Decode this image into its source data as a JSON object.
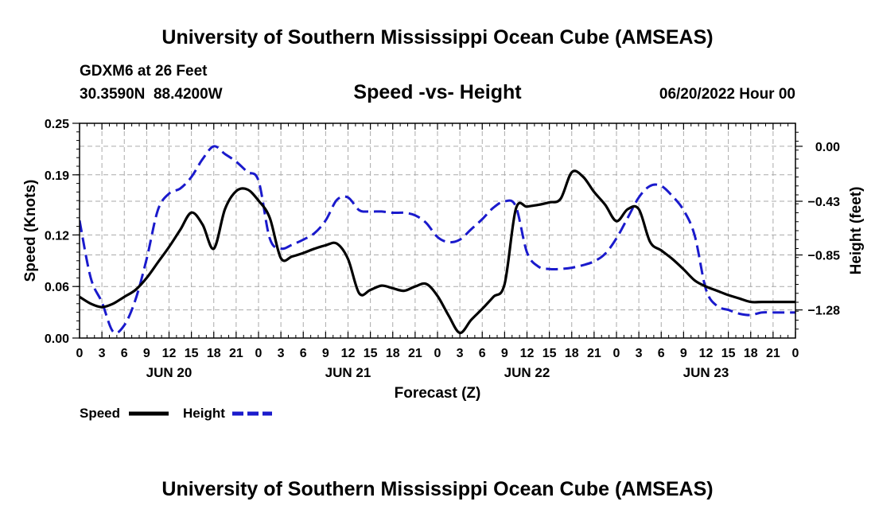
{
  "header": {
    "title": "University of Southern Mississippi Ocean Cube (AMSEAS)",
    "station": "GDXM6 at 26 Feet",
    "coords": "30.3590N  88.4200W",
    "subtitle": "Speed -vs- Height",
    "date": "06/20/2022 Hour 00"
  },
  "footer": {
    "title": "University of Southern Mississippi Ocean Cube (AMSEAS)"
  },
  "colors": {
    "speed": "#000000",
    "height": "#1a1acc",
    "grid": "#aaaaaa"
  },
  "chart_data": {
    "type": "line",
    "title": "Speed -vs- Height",
    "xlabel": "Forecast (Z)",
    "ylabel": "Speed (Knots)",
    "y2label": "Height (feet)",
    "x_range_hours": [
      0,
      96
    ],
    "ylim": [
      0,
      0.25
    ],
    "y_ticks": [
      0.0,
      0.06,
      0.12,
      0.19,
      0.25
    ],
    "y_tick_labels": [
      "0.00",
      "0.06",
      "0.12",
      "0.19",
      "0.25"
    ],
    "y2lim": [
      -1.5,
      0.18
    ],
    "y2_ticks": [
      0.0,
      -0.43,
      -0.85,
      -1.28
    ],
    "y2_tick_labels": [
      "0.00",
      "−0.43",
      "−0.85",
      "−1.28"
    ],
    "x_tick_hours": [
      0,
      3,
      6,
      9,
      12,
      15,
      18,
      21,
      24,
      27,
      30,
      33,
      36,
      39,
      42,
      45,
      48,
      51,
      54,
      57,
      60,
      63,
      66,
      69,
      72,
      75,
      78,
      81,
      84,
      87,
      90,
      93,
      96
    ],
    "x_tick_labels": [
      "0",
      "3",
      "6",
      "9",
      "12",
      "15",
      "18",
      "21",
      "0",
      "3",
      "6",
      "9",
      "12",
      "15",
      "18",
      "21",
      "0",
      "3",
      "6",
      "9",
      "12",
      "15",
      "18",
      "21",
      "0",
      "3",
      "6",
      "9",
      "12",
      "15",
      "18",
      "21",
      "0"
    ],
    "day_labels": [
      {
        "hour": 12,
        "label": "JUN 20"
      },
      {
        "hour": 36,
        "label": "JUN 21"
      },
      {
        "hour": 60,
        "label": "JUN 22"
      },
      {
        "hour": 84,
        "label": "JUN 23"
      }
    ],
    "legend": [
      {
        "name": "Speed",
        "style": "solid"
      },
      {
        "name": "Height",
        "style": "dashed"
      }
    ],
    "series": [
      {
        "name": "Speed",
        "axis": "left",
        "x": [
          0,
          1.5,
          3,
          4.5,
          6,
          7.5,
          9,
          10.5,
          12,
          13.5,
          15,
          16.5,
          18,
          19.5,
          21,
          22.5,
          24,
          25.5,
          27,
          28.5,
          30,
          31.5,
          33,
          34.5,
          36,
          37.5,
          39,
          40.5,
          42,
          43.5,
          45,
          46.5,
          48,
          49.5,
          51,
          52.5,
          54,
          55.5,
          57,
          58.5,
          60,
          61.5,
          63,
          64.5,
          66,
          67.5,
          69,
          70.5,
          72,
          73.5,
          75,
          76.5,
          78,
          79.5,
          81,
          82.5,
          84,
          85.5,
          87,
          88.5,
          90,
          91.5,
          93,
          94.5,
          96
        ],
        "values": [
          0.048,
          0.04,
          0.036,
          0.04,
          0.048,
          0.056,
          0.07,
          0.088,
          0.106,
          0.126,
          0.146,
          0.132,
          0.104,
          0.15,
          0.171,
          0.173,
          0.16,
          0.14,
          0.093,
          0.095,
          0.099,
          0.104,
          0.108,
          0.11,
          0.092,
          0.052,
          0.056,
          0.061,
          0.058,
          0.055,
          0.06,
          0.063,
          0.049,
          0.026,
          0.006,
          0.021,
          0.034,
          0.048,
          0.063,
          0.15,
          0.153,
          0.155,
          0.158,
          0.162,
          0.193,
          0.188,
          0.17,
          0.155,
          0.136,
          0.15,
          0.15,
          0.112,
          0.102,
          0.092,
          0.08,
          0.067,
          0.06,
          0.055,
          0.05,
          0.046,
          0.042,
          0.042,
          0.042,
          0.042,
          0.042
        ]
      },
      {
        "name": "Height",
        "axis": "right",
        "x": [
          0,
          1.5,
          3,
          4.5,
          6,
          7.5,
          9,
          10.5,
          12,
          13.5,
          15,
          16.5,
          18,
          19.5,
          21,
          22.5,
          24,
          25.5,
          27,
          28.5,
          30,
          31.5,
          33,
          34.5,
          36,
          37.5,
          39,
          40.5,
          42,
          43.5,
          45,
          46.5,
          48,
          49.5,
          51,
          52.5,
          54,
          55.5,
          57,
          58.5,
          60,
          61.5,
          63,
          64.5,
          66,
          67.5,
          69,
          70.5,
          72,
          73.5,
          75,
          76.5,
          78,
          79.5,
          81,
          82.5,
          84,
          85.5,
          87,
          88.5,
          90,
          91.5,
          93,
          94.5,
          96
        ],
        "values": [
          -0.58,
          -1.03,
          -1.22,
          -1.45,
          -1.4,
          -1.2,
          -0.88,
          -0.5,
          -0.37,
          -0.33,
          -0.24,
          -0.1,
          0.0,
          -0.06,
          -0.12,
          -0.2,
          -0.27,
          -0.72,
          -0.8,
          -0.77,
          -0.73,
          -0.68,
          -0.58,
          -0.42,
          -0.4,
          -0.5,
          -0.51,
          -0.51,
          -0.52,
          -0.52,
          -0.54,
          -0.6,
          -0.71,
          -0.75,
          -0.73,
          -0.65,
          -0.57,
          -0.48,
          -0.43,
          -0.47,
          -0.83,
          -0.94,
          -0.96,
          -0.96,
          -0.95,
          -0.93,
          -0.9,
          -0.84,
          -0.72,
          -0.56,
          -0.4,
          -0.31,
          -0.31,
          -0.39,
          -0.5,
          -0.7,
          -1.12,
          -1.25,
          -1.28,
          -1.31,
          -1.32,
          -1.3,
          -1.3,
          -1.3,
          -1.3
        ]
      }
    ]
  }
}
